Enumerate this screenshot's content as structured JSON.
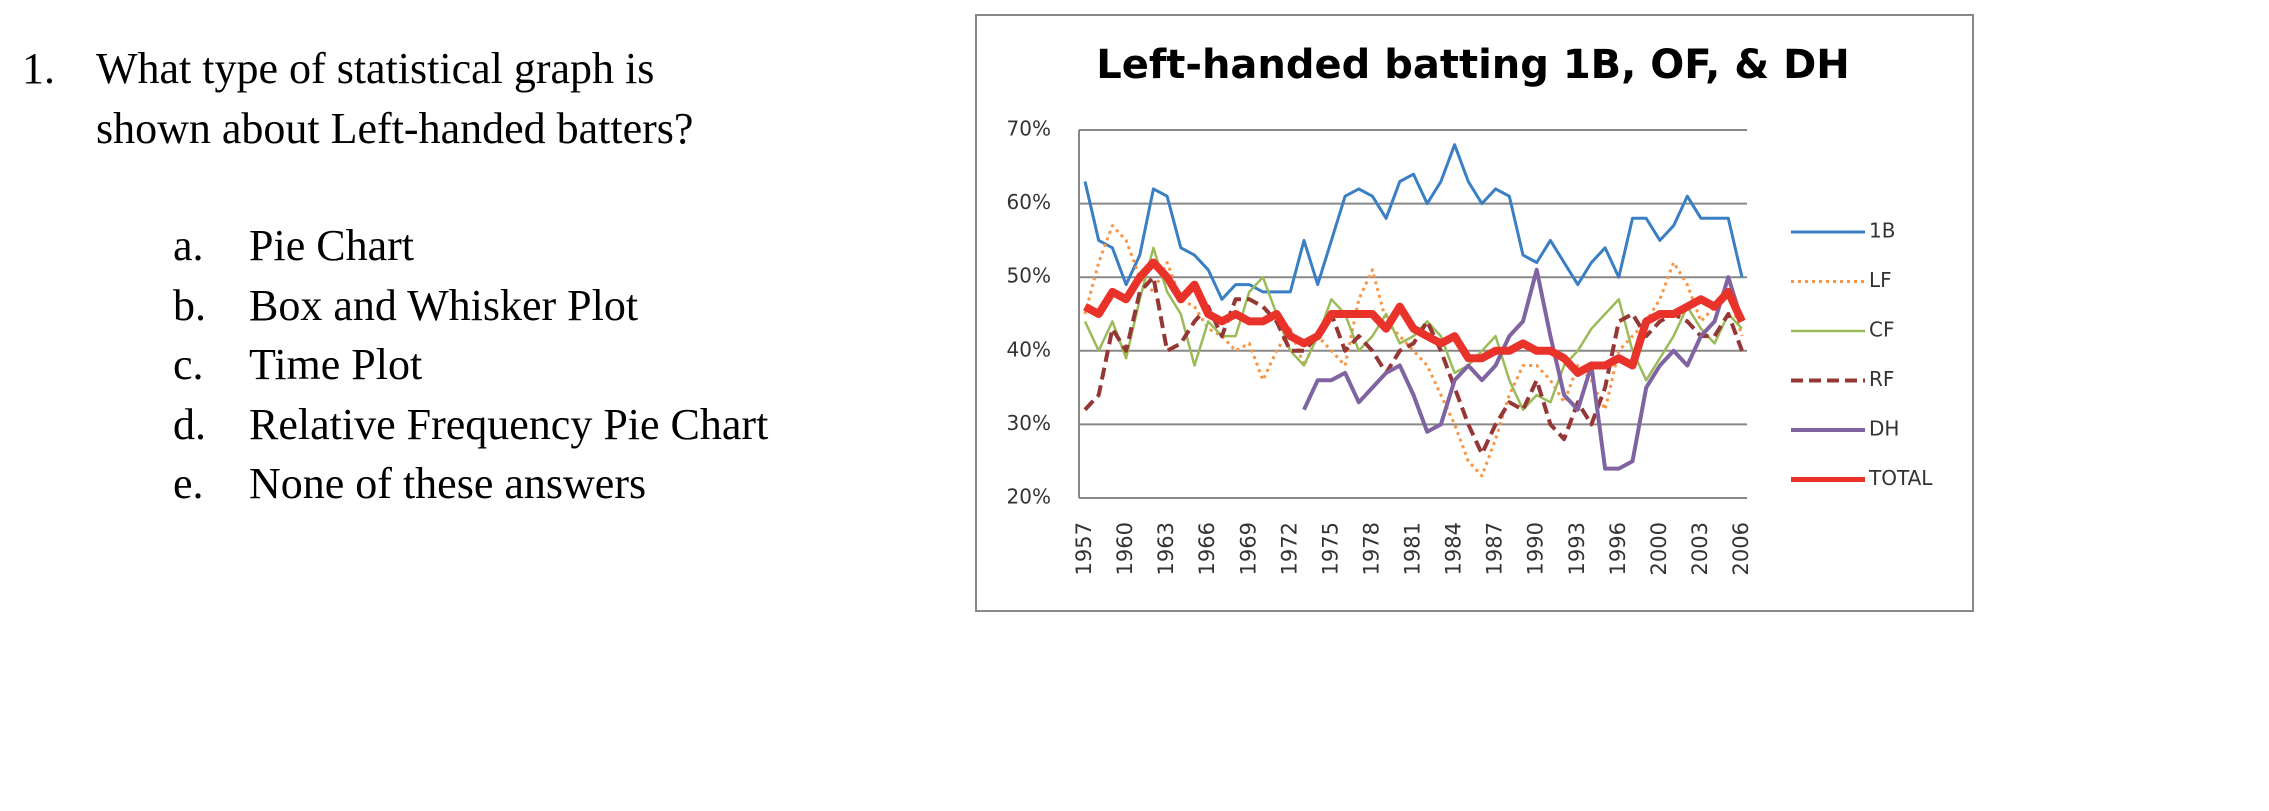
{
  "question": {
    "number": "1.",
    "lines": [
      "What type of statistical graph is",
      "shown about Left-handed batters?"
    ],
    "options": [
      {
        "letter": "a.",
        "text": "Pie Chart"
      },
      {
        "letter": "b.",
        "text": "Box and Whisker Plot"
      },
      {
        "letter": "c.",
        "text": "Time Plot"
      },
      {
        "letter": "d.",
        "text": "Relative Frequency Pie Chart"
      },
      {
        "letter": "e.",
        "text": "None of these answers"
      }
    ]
  },
  "chart_data": {
    "type": "line",
    "title": "Left-handed batting 1B, OF, & DH",
    "categories": [
      "1957",
      null,
      null,
      "1960",
      null,
      null,
      "1963",
      null,
      null,
      "1966",
      null,
      null,
      "1969",
      null,
      null,
      "1972",
      null,
      null,
      "1975",
      null,
      null,
      "1978",
      null,
      null,
      "1981",
      null,
      null,
      "1984",
      null,
      null,
      "1987",
      null,
      null,
      "1990",
      null,
      null,
      "1993",
      null,
      null,
      "1996",
      null,
      null,
      "2000",
      null,
      null,
      "2003",
      null,
      null,
      "2006"
    ],
    "ylim": [
      20,
      70
    ],
    "yticks": [
      {
        "value": 20,
        "label": "20%"
      },
      {
        "value": 30,
        "label": "30%"
      },
      {
        "value": 40,
        "label": "40%"
      },
      {
        "value": 50,
        "label": "50%"
      },
      {
        "value": 60,
        "label": "60%"
      },
      {
        "value": 70,
        "label": "70%"
      }
    ],
    "grid": true,
    "legend": "right",
    "series": [
      {
        "name": "1B",
        "color": "#3a7ec4",
        "dash": "solid",
        "width": 3,
        "values": [
          63,
          55,
          54,
          49,
          53,
          62,
          61,
          54,
          53,
          51,
          47,
          49,
          49,
          48,
          48,
          48,
          55,
          49,
          55,
          61,
          62,
          61,
          58,
          63,
          64,
          60,
          63,
          68,
          63,
          60,
          62,
          61,
          53,
          52,
          55,
          52,
          49,
          52,
          54,
          50,
          58,
          58,
          55,
          57,
          61,
          58,
          58,
          58,
          50
        ]
      },
      {
        "name": "LF",
        "color": "#f79646",
        "dash": "dotted",
        "width": 3,
        "values": [
          45,
          52,
          57,
          55,
          50,
          48,
          52,
          47,
          46,
          43,
          42,
          40,
          41,
          36,
          40,
          43,
          38,
          42,
          40,
          38,
          47,
          51,
          44,
          42,
          40,
          38,
          34,
          30,
          25,
          23,
          28,
          34,
          38,
          38,
          36,
          33,
          38,
          36,
          32,
          40,
          42,
          44,
          47,
          52,
          49,
          44,
          46,
          48,
          42
        ]
      },
      {
        "name": "CF",
        "color": "#9bbb59",
        "dash": "solid",
        "width": 2.5,
        "values": [
          44,
          40,
          44,
          39,
          47,
          54,
          48,
          45,
          38,
          44,
          42,
          42,
          48,
          50,
          45,
          40,
          38,
          42,
          47,
          45,
          40,
          42,
          45,
          41,
          42,
          44,
          42,
          37,
          38,
          40,
          42,
          36,
          32,
          34,
          33,
          38,
          40,
          43,
          45,
          47,
          40,
          36,
          39,
          42,
          46,
          43,
          41,
          45,
          43
        ]
      },
      {
        "name": "RF",
        "color": "#953735",
        "dash": "dashed",
        "width": 4,
        "values": [
          32,
          34,
          43,
          40,
          48,
          50,
          40,
          41,
          44,
          46,
          42,
          47,
          47,
          46,
          44,
          40,
          40,
          42,
          45,
          40,
          42,
          40,
          37,
          40,
          41,
          44,
          40,
          35,
          30,
          26,
          30,
          33,
          32,
          36,
          30,
          28,
          33,
          30,
          35,
          44,
          45,
          42,
          44,
          45,
          44,
          42,
          42,
          45,
          40
        ]
      },
      {
        "name": "DH",
        "color": "#8064a2",
        "dash": "solid",
        "width": 4,
        "values": [
          null,
          null,
          null,
          null,
          null,
          null,
          null,
          null,
          null,
          null,
          null,
          null,
          null,
          null,
          null,
          null,
          32,
          36,
          36,
          37,
          33,
          35,
          37,
          38,
          34,
          29,
          30,
          36,
          38,
          36,
          38,
          42,
          44,
          51,
          42,
          34,
          32,
          38,
          24,
          24,
          25,
          35,
          38,
          40,
          38,
          42,
          44,
          50,
          44
        ]
      },
      {
        "name": "TOTAL",
        "color": "#e8322a",
        "dash": "solid",
        "width": 8,
        "values": [
          46,
          45,
          48,
          47,
          50,
          52,
          50,
          47,
          49,
          45,
          44,
          45,
          44,
          44,
          45,
          42,
          41,
          42,
          45,
          45,
          45,
          45,
          43,
          46,
          43,
          42,
          41,
          42,
          39,
          39,
          40,
          40,
          41,
          40,
          40,
          39,
          37,
          38,
          38,
          39,
          38,
          44,
          45,
          45,
          46,
          47,
          46,
          48,
          44
        ]
      }
    ]
  }
}
